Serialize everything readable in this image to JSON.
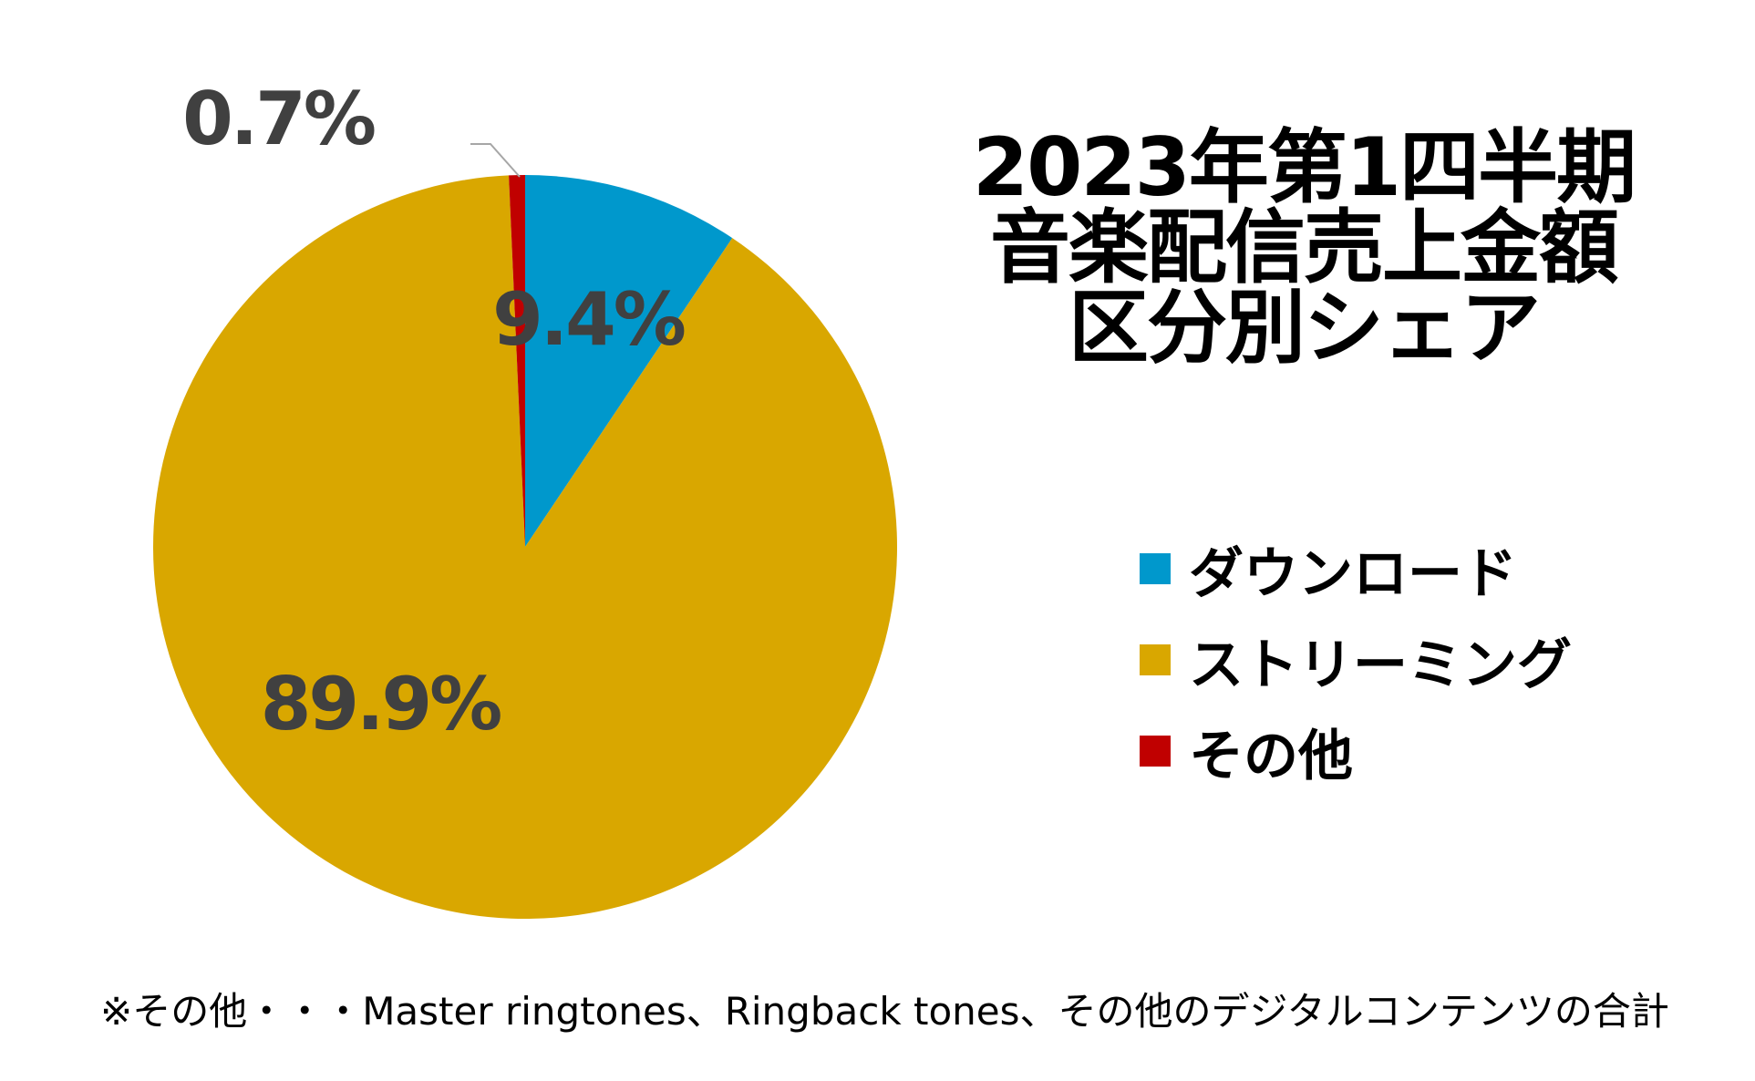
{
  "chart_data": {
    "type": "pie",
    "title": [
      "2023年第1四半期",
      "音楽配信売上金額",
      "区分別シェア"
    ],
    "categories": [
      "ダウンロード",
      "ストリーミング",
      "その他"
    ],
    "values": [
      9.4,
      89.9,
      0.7
    ],
    "value_labels": [
      "9.4%",
      "89.9%",
      "0.7%"
    ],
    "colors": [
      "#0098CC",
      "#D9A700",
      "#C00000"
    ],
    "label_color": "#404040",
    "legend_position": "right",
    "start_angle_deg": 0,
    "direction": "clockwise"
  },
  "footnote": "※その他・・・Master ringtones、Ringback tones、その他のデジタルコンテンツの合計"
}
